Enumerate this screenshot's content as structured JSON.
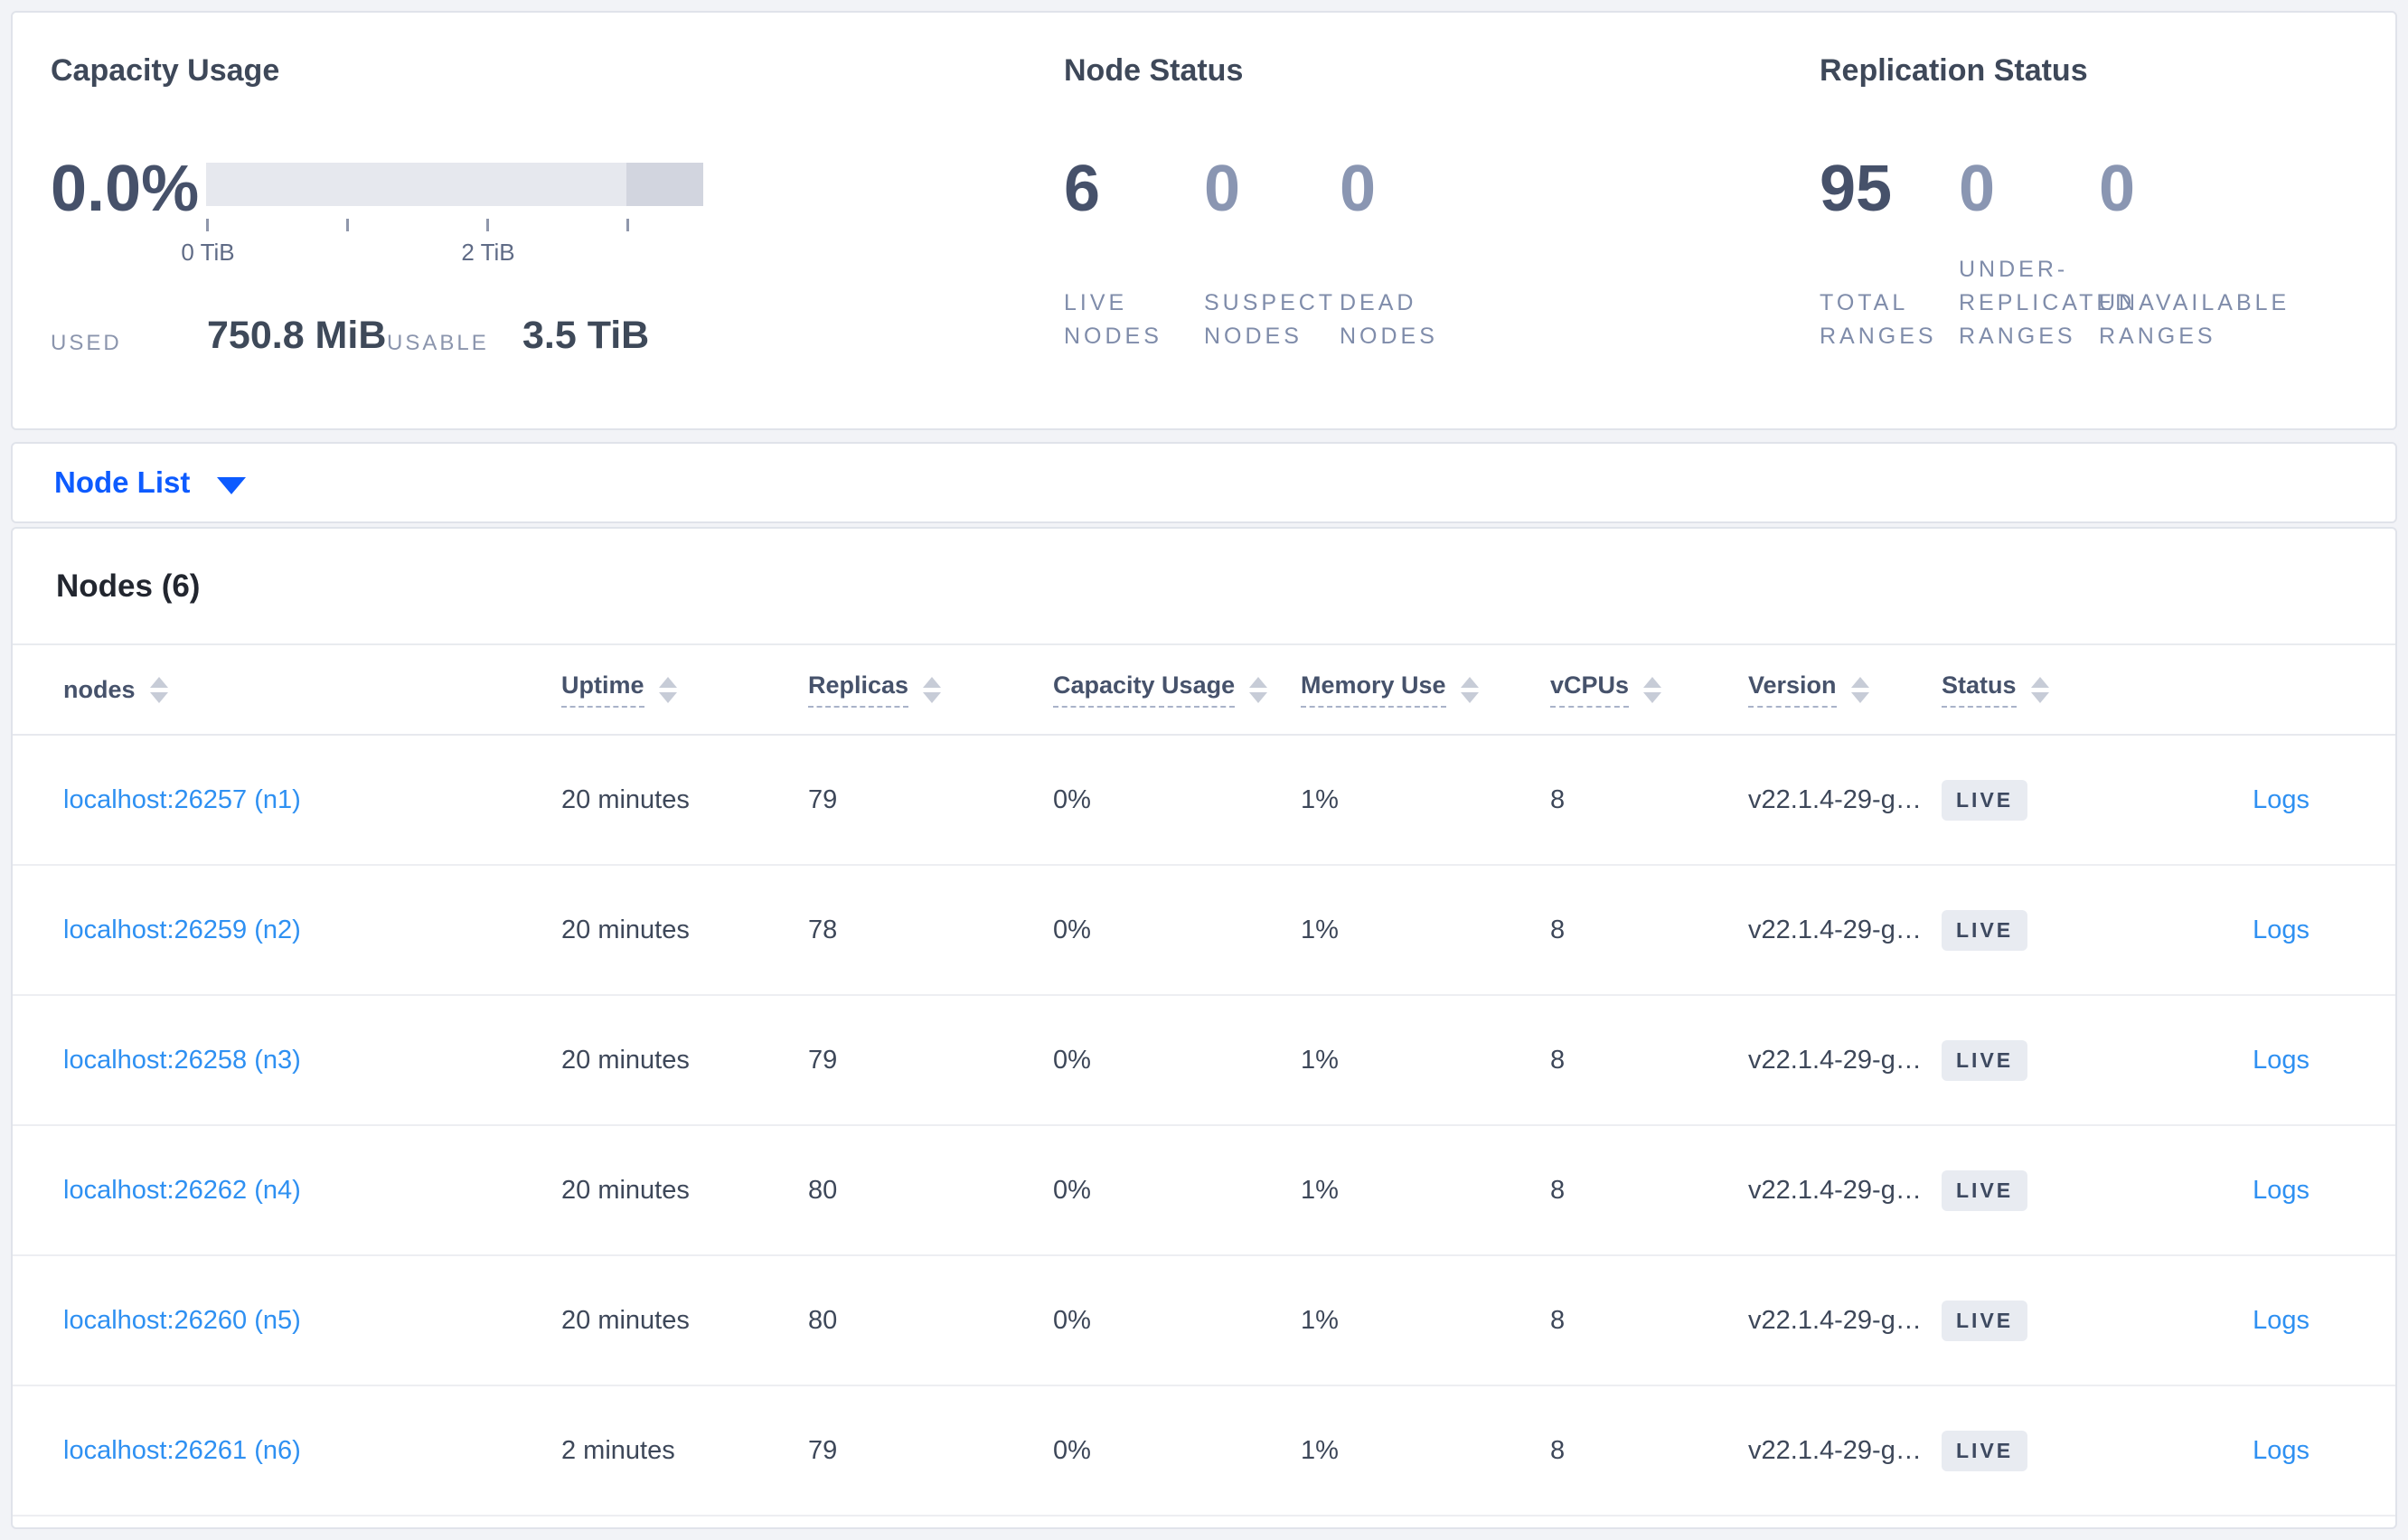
{
  "colors": {
    "page_background": "#f2f3f7",
    "primary_blue": "#0d5bff",
    "link_blue": "#2e90f2",
    "dark_text": "#3d4759",
    "muted_label": "#7f8caa",
    "muted_number": "#8a96b2",
    "badge_background": "#e8ebf1",
    "gauge_track": "#e6e8ee",
    "gauge_reserved": "#d2d5df"
  },
  "summary": {
    "capacity_usage": {
      "title": "Capacity Usage",
      "used_percent": "0.0%",
      "gauge_tick_labels": [
        "0 TiB",
        "2 TiB"
      ],
      "stats": [
        {
          "label": "USED",
          "value": "750.8 MiB"
        },
        {
          "label": "USABLE",
          "value": "3.5 TiB"
        }
      ]
    },
    "node_status": {
      "title": "Node Status",
      "metrics": [
        {
          "value": "6",
          "label": "LIVE NODES"
        },
        {
          "value": "0",
          "label": "SUSPECT NODES"
        },
        {
          "value": "0",
          "label": "DEAD NODES"
        }
      ]
    },
    "replication_status": {
      "title": "Replication Status",
      "metrics": [
        {
          "value": "95",
          "label": "TOTAL RANGES"
        },
        {
          "value": "0",
          "label": "UNDER-REPLICATED RANGES"
        },
        {
          "value": "0",
          "label": "UNAVAILABLE RANGES"
        }
      ]
    }
  },
  "view_selector": {
    "label": "Node List"
  },
  "nodes_table": {
    "title": "Nodes (6)",
    "columns": [
      "nodes",
      "Uptime",
      "Replicas",
      "Capacity Usage",
      "Memory Use",
      "vCPUs",
      "Version",
      "Status"
    ],
    "logs_label": "Logs",
    "rows": [
      {
        "node": "localhost:26257 (n1)",
        "uptime": "20 minutes",
        "replicas": "79",
        "capacity_usage": "0%",
        "memory_use": "1%",
        "vcpus": "8",
        "version": "v22.1.4-29-g…",
        "status": "LIVE"
      },
      {
        "node": "localhost:26259 (n2)",
        "uptime": "20 minutes",
        "replicas": "78",
        "capacity_usage": "0%",
        "memory_use": "1%",
        "vcpus": "8",
        "version": "v22.1.4-29-g…",
        "status": "LIVE"
      },
      {
        "node": "localhost:26258 (n3)",
        "uptime": "20 minutes",
        "replicas": "79",
        "capacity_usage": "0%",
        "memory_use": "1%",
        "vcpus": "8",
        "version": "v22.1.4-29-g…",
        "status": "LIVE"
      },
      {
        "node": "localhost:26262 (n4)",
        "uptime": "20 minutes",
        "replicas": "80",
        "capacity_usage": "0%",
        "memory_use": "1%",
        "vcpus": "8",
        "version": "v22.1.4-29-g…",
        "status": "LIVE"
      },
      {
        "node": "localhost:26260 (n5)",
        "uptime": "20 minutes",
        "replicas": "80",
        "capacity_usage": "0%",
        "memory_use": "1%",
        "vcpus": "8",
        "version": "v22.1.4-29-g…",
        "status": "LIVE"
      },
      {
        "node": "localhost:26261 (n6)",
        "uptime": "2 minutes",
        "replicas": "79",
        "capacity_usage": "0%",
        "memory_use": "1%",
        "vcpus": "8",
        "version": "v22.1.4-29-g…",
        "status": "LIVE"
      }
    ]
  }
}
